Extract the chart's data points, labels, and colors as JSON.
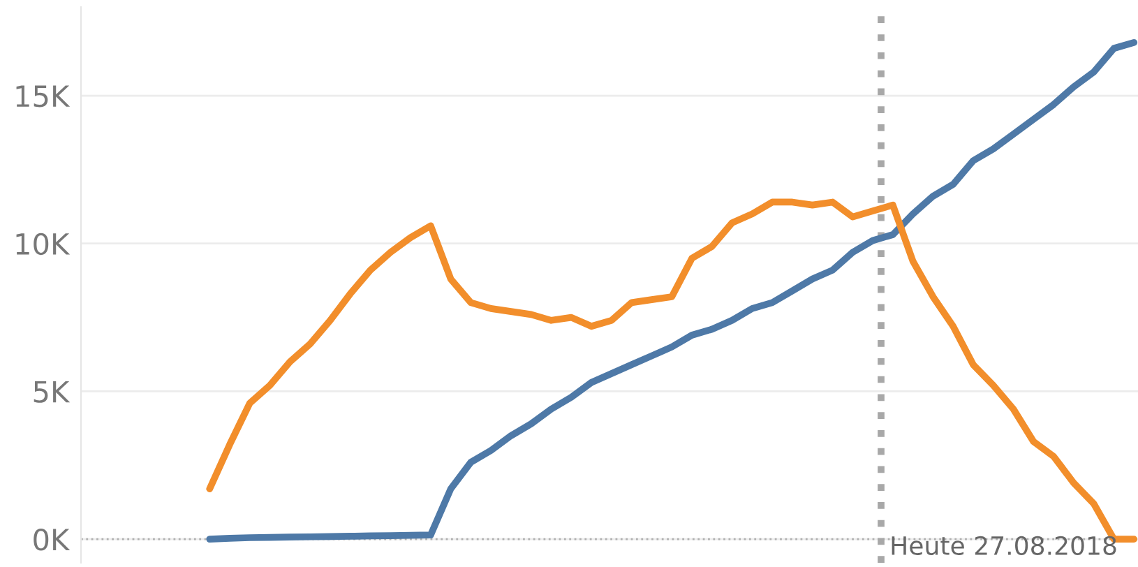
{
  "chart_data": {
    "type": "line",
    "categories": [
      null,
      null,
      null,
      null,
      null,
      null,
      null,
      null,
      null,
      null,
      null,
      null,
      null,
      null,
      null,
      null,
      null,
      null,
      null,
      null,
      null,
      null,
      null,
      null,
      null,
      null,
      null,
      null,
      null,
      null,
      null,
      null,
      null,
      null,
      null,
      null,
      null,
      null,
      null,
      null,
      null,
      null,
      null,
      null,
      null,
      null,
      null
    ],
    "series": [
      {
        "color": "#4e79a7",
        "values": [
          0,
          30,
          50,
          60,
          70,
          80,
          90,
          100,
          110,
          120,
          130,
          140,
          1700,
          2600,
          3000,
          3500,
          3900,
          4400,
          4800,
          5300,
          5600,
          5900,
          6200,
          6500,
          6900,
          7100,
          7400,
          7800,
          8000,
          8400,
          8800,
          9100,
          9700,
          10100,
          10300,
          11000,
          11600,
          12000,
          12800,
          13200,
          13700,
          14200,
          14700,
          15300,
          15800,
          16600,
          16800
        ]
      },
      {
        "color": "#f28e2b",
        "values": [
          1700,
          3200,
          4600,
          5200,
          6000,
          6600,
          7400,
          8300,
          9100,
          9700,
          10200,
          10600,
          8800,
          8000,
          7800,
          7700,
          7600,
          7400,
          7500,
          7200,
          7400,
          8000,
          8100,
          8200,
          9500,
          9900,
          10700,
          11000,
          11400,
          11400,
          11300,
          11400,
          10900,
          11100,
          11300,
          9400,
          8200,
          7200,
          5900,
          5200,
          4400,
          3300,
          2800,
          1900,
          1200,
          0,
          0
        ]
      }
    ],
    "ylim": [
      -800,
      18000
    ],
    "yticks": [
      {
        "value": 0,
        "label": "0K"
      },
      {
        "value": 5000,
        "label": "5K"
      },
      {
        "value": 10000,
        "label": "10K"
      },
      {
        "value": 15000,
        "label": "15K"
      }
    ],
    "grid": "y",
    "line_style": "solid",
    "marker": "none",
    "legend": false,
    "tick_labels": "y",
    "ref_lines": [
      {
        "axis": "y",
        "value": 0,
        "label": null,
        "color": "#b0b0b0",
        "line_style": "dotted"
      }
    ],
    "annotations": [
      "Heute 27.08.2018"
    ]
  }
}
